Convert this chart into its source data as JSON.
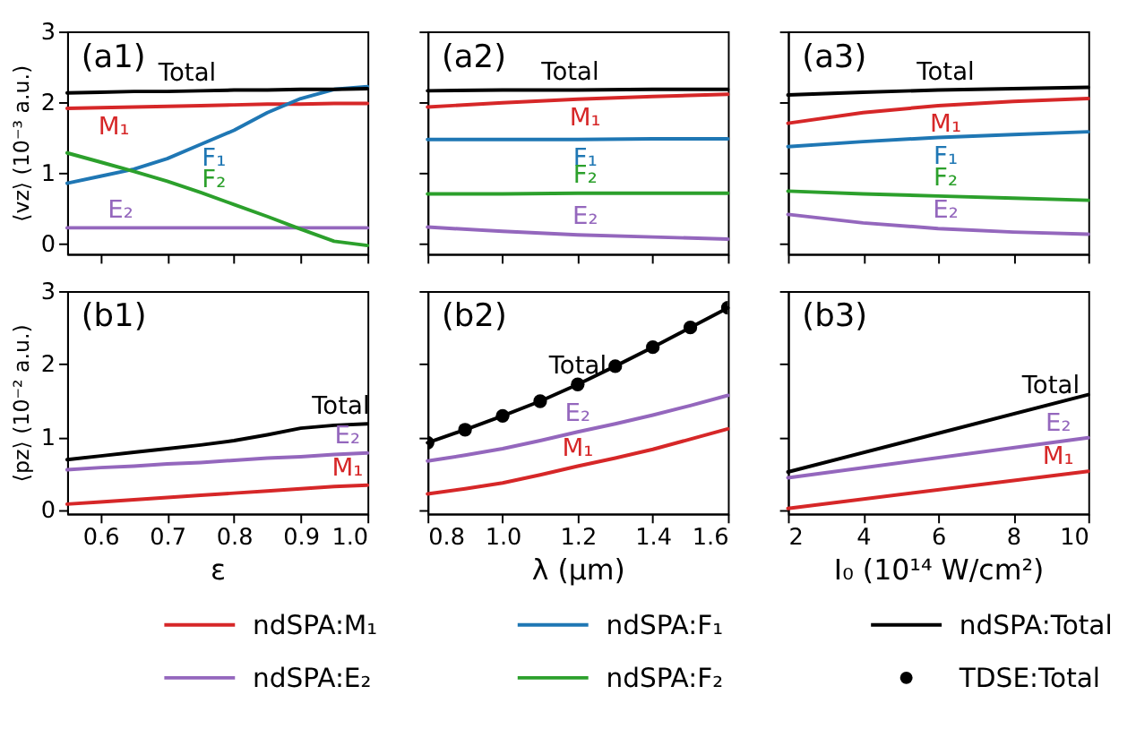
{
  "chart_data": [
    {
      "type": "line",
      "ylabel": "⟨vz⟩ (10⁻³ a.u.)",
      "x": [
        0.55,
        0.6,
        0.65,
        0.7,
        0.75,
        0.8,
        0.85,
        0.9,
        0.95,
        1.0
      ],
      "xlim": [
        0.55,
        1.0
      ],
      "xticks": [
        0.6,
        0.7,
        0.8,
        0.9,
        1.0
      ],
      "ylim": [
        -0.15,
        3
      ],
      "yticks": [
        0,
        1,
        2,
        3
      ],
      "tick_labels": "y",
      "legend": "bottom",
      "series": [
        {
          "name": "ndSPA:M₁",
          "color": "#d62728",
          "values": [
            1.91,
            1.92,
            1.93,
            1.94,
            1.95,
            1.96,
            1.97,
            1.97,
            1.98,
            1.98
          ]
        },
        {
          "name": "ndSPA:E₂",
          "color": "#9467bd",
          "values": [
            0.22,
            0.22,
            0.22,
            0.22,
            0.22,
            0.22,
            0.22,
            0.22,
            0.22,
            0.22
          ]
        },
        {
          "name": "ndSPA:F₁",
          "color": "#1f77b4",
          "values": [
            0.85,
            0.95,
            1.05,
            1.2,
            1.4,
            1.6,
            1.85,
            2.05,
            2.18,
            2.22
          ]
        },
        {
          "name": "ndSPA:F₂",
          "color": "#2ca02c",
          "values": [
            1.28,
            1.15,
            1.02,
            0.88,
            0.72,
            0.55,
            0.38,
            0.2,
            0.03,
            -0.03
          ]
        },
        {
          "name": "ndSPA:Total",
          "color": "#000000",
          "values": [
            2.13,
            2.14,
            2.15,
            2.15,
            2.16,
            2.17,
            2.17,
            2.18,
            2.18,
            2.19
          ]
        }
      ],
      "annotations": [
        "(a1)",
        {
          "text": "Total",
          "x": 0.73,
          "y": 2.15
        },
        {
          "text": "M₁",
          "x": 0.62,
          "y": 1.92
        },
        {
          "text": "F₁",
          "x": 0.77,
          "y": 1.48
        },
        {
          "text": "F₂",
          "x": 0.77,
          "y": 0.65
        },
        {
          "text": "E₂",
          "x": 0.63,
          "y": 0.22
        }
      ]
    },
    {
      "type": "line",
      "x": [
        0.8,
        1.0,
        1.2,
        1.4,
        1.6
      ],
      "xlim": [
        0.8,
        1.6
      ],
      "xticks": [
        0.8,
        1.0,
        1.2,
        1.4,
        1.6
      ],
      "ylim": [
        -0.15,
        3
      ],
      "yticks": [
        0,
        1,
        2,
        3
      ],
      "tick_labels": false,
      "series": [
        {
          "name": "ndSPA:M₁",
          "color": "#d62728",
          "values": [
            1.93,
            1.99,
            2.04,
            2.08,
            2.11
          ]
        },
        {
          "name": "ndSPA:E₂",
          "color": "#9467bd",
          "values": [
            0.23,
            0.17,
            0.12,
            0.09,
            0.06
          ]
        },
        {
          "name": "ndSPA:F₁",
          "color": "#1f77b4",
          "values": [
            1.47,
            1.47,
            1.47,
            1.48,
            1.48
          ]
        },
        {
          "name": "ndSPA:F₂",
          "color": "#2ca02c",
          "values": [
            0.7,
            0.7,
            0.71,
            0.71,
            0.71
          ]
        },
        {
          "name": "ndSPA:Total",
          "color": "#000000",
          "values": [
            2.16,
            2.17,
            2.17,
            2.18,
            2.18
          ]
        }
      ],
      "annotations": [
        "(a2)",
        {
          "text": "Total",
          "x": 1.18,
          "y": 2.17
        },
        {
          "text": "M₁",
          "x": 1.22,
          "y": 2.04
        },
        {
          "text": "F₁",
          "x": 1.22,
          "y": 1.47
        },
        {
          "text": "F₂",
          "x": 1.22,
          "y": 0.71
        },
        {
          "text": "E₂",
          "x": 1.22,
          "y": 0.12
        }
      ]
    },
    {
      "type": "line",
      "x": [
        2,
        4,
        6,
        8,
        10
      ],
      "xlim": [
        2,
        10
      ],
      "xticks": [
        2,
        4,
        6,
        8,
        10
      ],
      "ylim": [
        -0.15,
        3
      ],
      "yticks": [
        0,
        1,
        2,
        3
      ],
      "tick_labels": false,
      "series": [
        {
          "name": "ndSPA:M₁",
          "color": "#d62728",
          "values": [
            1.7,
            1.85,
            1.95,
            2.01,
            2.05
          ]
        },
        {
          "name": "ndSPA:E₂",
          "color": "#9467bd",
          "values": [
            0.41,
            0.29,
            0.21,
            0.16,
            0.13
          ]
        },
        {
          "name": "ndSPA:F₁",
          "color": "#1f77b4",
          "values": [
            1.37,
            1.44,
            1.5,
            1.54,
            1.58
          ]
        },
        {
          "name": "ndSPA:F₂",
          "color": "#2ca02c",
          "values": [
            0.74,
            0.7,
            0.67,
            0.64,
            0.61
          ]
        },
        {
          "name": "ndSPA:Total",
          "color": "#000000",
          "values": [
            2.1,
            2.14,
            2.17,
            2.19,
            2.21
          ]
        }
      ],
      "annotations": [
        "(a3)",
        {
          "text": "Total",
          "x": 6.2,
          "y": 2.17
        },
        {
          "text": "M₁",
          "x": 6.2,
          "y": 1.95
        },
        {
          "text": "F₁",
          "x": 6.2,
          "y": 1.5
        },
        {
          "text": "F₂",
          "x": 6.2,
          "y": 0.67
        },
        {
          "text": "E₂",
          "x": 6.2,
          "y": 0.21
        }
      ]
    },
    {
      "type": "line",
      "xlabel": "ε",
      "ylabel": "⟨pz⟩ (10⁻² a.u.)",
      "x": [
        0.55,
        0.6,
        0.65,
        0.7,
        0.75,
        0.8,
        0.85,
        0.9,
        0.95,
        1.0
      ],
      "xlim": [
        0.55,
        1.0
      ],
      "xticks": [
        0.6,
        0.7,
        0.8,
        0.9,
        {
          "value": 1,
          "label": "1.0"
        }
      ],
      "ylim": [
        -0.05,
        3
      ],
      "yticks": [
        0,
        1,
        2,
        3
      ],
      "series": [
        {
          "name": "ndSPA:M₁",
          "color": "#d62728",
          "values": [
            0.08,
            0.11,
            0.14,
            0.17,
            0.2,
            0.23,
            0.26,
            0.29,
            0.32,
            0.34
          ]
        },
        {
          "name": "ndSPA:E₂",
          "color": "#9467bd",
          "values": [
            0.55,
            0.58,
            0.6,
            0.63,
            0.65,
            0.68,
            0.71,
            0.73,
            0.76,
            0.78
          ]
        },
        {
          "name": "ndSPA:Total",
          "color": "#000000",
          "values": [
            0.69,
            0.74,
            0.79,
            0.84,
            0.89,
            0.95,
            1.03,
            1.12,
            1.16,
            1.18
          ]
        }
      ],
      "annotations": [
        "(b1)",
        {
          "text": "Total",
          "x": 0.96,
          "y": 1.17
        },
        {
          "text": "E₂",
          "x": 0.97,
          "y": 0.77
        },
        {
          "text": "M₁",
          "x": 0.97,
          "y": 0.33
        }
      ]
    },
    {
      "type": "line",
      "xlabel": "λ (μm)",
      "x": [
        0.8,
        0.9,
        1.0,
        1.1,
        1.2,
        1.3,
        1.4,
        1.5,
        1.6
      ],
      "xlim": [
        0.8,
        1.6
      ],
      "xticks": [
        0.8,
        {
          "value": 1,
          "label": "1.0"
        },
        1.2,
        1.4,
        1.6
      ],
      "ylim": [
        -0.05,
        3
      ],
      "yticks": [
        0,
        1,
        2,
        3
      ],
      "tick_labels": "x",
      "series": [
        {
          "name": "ndSPA:M₁",
          "color": "#d62728",
          "values": [
            0.22,
            0.29,
            0.37,
            0.48,
            0.6,
            0.71,
            0.83,
            0.97,
            1.11
          ]
        },
        {
          "name": "ndSPA:E₂",
          "color": "#9467bd",
          "values": [
            0.67,
            0.75,
            0.84,
            0.95,
            1.07,
            1.18,
            1.3,
            1.43,
            1.57
          ]
        },
        {
          "name": "ndSPA:Total",
          "color": "#000000",
          "values": [
            0.92,
            1.1,
            1.29,
            1.49,
            1.72,
            1.97,
            2.23,
            2.5,
            2.77
          ]
        },
        {
          "name": "TDSE:Total",
          "color": "#000000",
          "type": "scatter",
          "marker": "circle",
          "values": [
            0.92,
            1.1,
            1.29,
            1.49,
            1.72,
            1.97,
            2.23,
            2.5,
            2.77
          ]
        }
      ],
      "annotations": [
        "(b2)",
        {
          "text": "Total",
          "x": 1.2,
          "y": 1.72
        },
        {
          "text": "E₂",
          "x": 1.2,
          "y": 1.07
        },
        {
          "text": "M₁",
          "x": 1.2,
          "y": 0.6
        }
      ]
    },
    {
      "type": "line",
      "xlabel": "I₀ (10¹⁴ W/cm²)",
      "x": [
        2,
        10
      ],
      "xlim": [
        2,
        10
      ],
      "xticks": [
        2,
        4,
        6,
        8,
        10
      ],
      "ylim": [
        -0.05,
        3
      ],
      "yticks": [
        0,
        1,
        2,
        3
      ],
      "tick_labels": "x",
      "series": [
        {
          "name": "ndSPA:M₁",
          "color": "#d62728",
          "values": [
            0.02,
            0.53
          ]
        },
        {
          "name": "ndSPA:E₂",
          "color": "#9467bd",
          "values": [
            0.44,
            0.99
          ]
        },
        {
          "name": "ndSPA:Total",
          "color": "#000000",
          "values": [
            0.52,
            1.58
          ]
        }
      ],
      "annotations": [
        "(b3)",
        {
          "text": "Total",
          "x": 9.0,
          "y": 1.45
        },
        {
          "text": "E₂",
          "x": 9.2,
          "y": 0.94
        },
        {
          "text": "M₁",
          "x": 9.2,
          "y": 0.48
        }
      ]
    }
  ]
}
